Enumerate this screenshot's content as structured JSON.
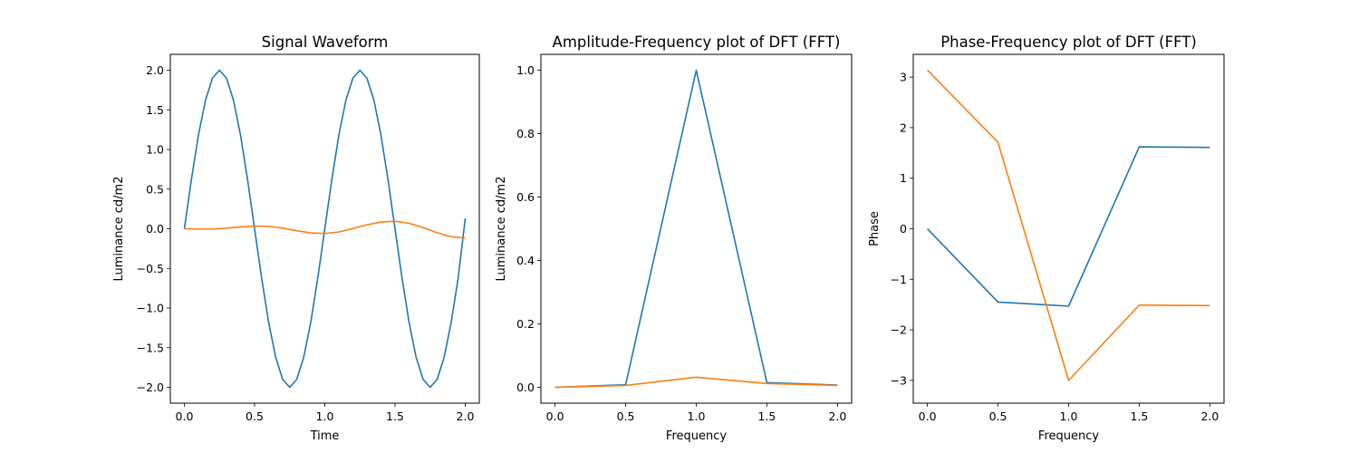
{
  "chart_data": [
    {
      "type": "line",
      "title": "Signal Waveform",
      "xlabel": "Time",
      "ylabel": "Luminance cd/m2",
      "xlim": [
        -0.1,
        2.1
      ],
      "ylim": [
        -2.2,
        2.2
      ],
      "xticks": [
        0.0,
        0.5,
        1.0,
        1.5,
        2.0
      ],
      "xtick_labels": [
        "0.0",
        "0.5",
        "1.0",
        "1.5",
        "2.0"
      ],
      "yticks": [
        -2.0,
        -1.5,
        -1.0,
        -0.5,
        0.0,
        0.5,
        1.0,
        1.5,
        2.0
      ],
      "ytick_labels": [
        "−2.0",
        "−1.5",
        "−1.0",
        "−0.5",
        "0.0",
        "0.5",
        "1.0",
        "1.5",
        "2.0"
      ],
      "grid": false,
      "series": [
        {
          "color": "#1f77b4",
          "x": [
            0.0,
            0.05,
            0.1,
            0.15,
            0.2,
            0.25,
            0.3,
            0.35,
            0.4,
            0.45,
            0.5,
            0.55,
            0.6,
            0.65,
            0.7,
            0.75,
            0.8,
            0.85,
            0.9,
            0.95,
            1.0,
            1.05,
            1.1,
            1.15,
            1.2,
            1.25,
            1.3,
            1.35,
            1.4,
            1.45,
            1.5,
            1.55,
            1.6,
            1.65,
            1.7,
            1.75,
            1.8,
            1.85,
            1.9,
            1.95,
            2.0
          ],
          "y": [
            0.0,
            0.62,
            1.18,
            1.62,
            1.9,
            2.0,
            1.9,
            1.62,
            1.18,
            0.62,
            0.0,
            -0.62,
            -1.18,
            -1.62,
            -1.9,
            -2.0,
            -1.9,
            -1.62,
            -1.18,
            -0.62,
            0.0,
            0.62,
            1.18,
            1.62,
            1.9,
            2.0,
            1.9,
            1.62,
            1.18,
            0.62,
            0.0,
            -0.62,
            -1.18,
            -1.62,
            -1.9,
            -2.0,
            -1.9,
            -1.62,
            -1.18,
            -0.62,
            0.13
          ]
        },
        {
          "color": "#ff7f0e",
          "x": [
            0.0,
            0.1,
            0.2,
            0.3,
            0.4,
            0.5,
            0.6,
            0.7,
            0.8,
            0.9,
            1.0,
            1.1,
            1.2,
            1.3,
            1.4,
            1.5,
            1.6,
            1.7,
            1.8,
            1.9,
            2.0
          ],
          "y": [
            0.0,
            -0.005,
            -0.003,
            0.008,
            0.024,
            0.035,
            0.03,
            0.008,
            -0.025,
            -0.052,
            -0.06,
            -0.04,
            0.003,
            0.05,
            0.085,
            0.095,
            0.07,
            0.015,
            -0.05,
            -0.1,
            -0.12
          ]
        }
      ]
    },
    {
      "type": "line",
      "title": "Amplitude-Frequency plot of DFT (FFT)",
      "xlabel": "Frequency",
      "ylabel": "Luminance cd/m2",
      "xlim": [
        -0.1,
        2.1
      ],
      "ylim": [
        -0.05,
        1.05
      ],
      "xticks": [
        0.0,
        0.5,
        1.0,
        1.5,
        2.0
      ],
      "xtick_labels": [
        "0.0",
        "0.5",
        "1.0",
        "1.5",
        "2.0"
      ],
      "yticks": [
        0.0,
        0.2,
        0.4,
        0.6,
        0.8,
        1.0
      ],
      "ytick_labels": [
        "0.0",
        "0.2",
        "0.4",
        "0.6",
        "0.8",
        "1.0"
      ],
      "grid": false,
      "series": [
        {
          "color": "#1f77b4",
          "x": [
            0.0,
            0.5,
            1.0,
            1.5,
            2.0
          ],
          "y": [
            0.0,
            0.008,
            1.0,
            0.015,
            0.007
          ]
        },
        {
          "color": "#ff7f0e",
          "x": [
            0.0,
            0.5,
            1.0,
            1.5,
            2.0
          ],
          "y": [
            0.0,
            0.006,
            0.032,
            0.012,
            0.006
          ]
        }
      ]
    },
    {
      "type": "line",
      "title": "Phase-Frequency plot of DFT (FFT)",
      "xlabel": "Frequency",
      "ylabel": "Phase",
      "xlim": [
        -0.1,
        2.1
      ],
      "ylim": [
        -3.45,
        3.45
      ],
      "xticks": [
        0.0,
        0.5,
        1.0,
        1.5,
        2.0
      ],
      "xtick_labels": [
        "0.0",
        "0.5",
        "1.0",
        "1.5",
        "2.0"
      ],
      "yticks": [
        -3,
        -2,
        -1,
        0,
        1,
        2,
        3
      ],
      "ytick_labels": [
        "−3",
        "−2",
        "−1",
        "0",
        "1",
        "2",
        "3"
      ],
      "grid": false,
      "series": [
        {
          "color": "#1f77b4",
          "x": [
            0.0,
            0.5,
            1.0,
            1.5,
            2.0
          ],
          "y": [
            0.0,
            -1.45,
            -1.53,
            1.62,
            1.61
          ]
        },
        {
          "color": "#ff7f0e",
          "x": [
            0.0,
            0.5,
            1.0,
            1.5,
            2.0
          ],
          "y": [
            3.14,
            1.71,
            -3.0,
            -1.51,
            -1.52
          ]
        }
      ]
    }
  ]
}
